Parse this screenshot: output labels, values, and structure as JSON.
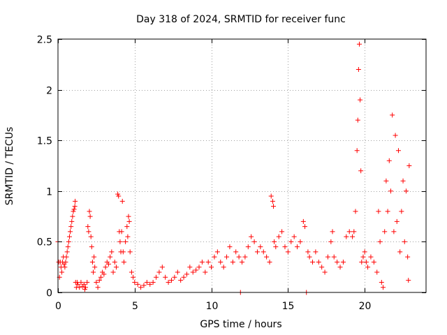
{
  "chart_data": {
    "type": "scatter",
    "title": "Day 318 of 2024, SRMTID for receiver func",
    "xlabel": "GPS time / hours",
    "ylabel": "SRMTID / TECUs",
    "xlim": [
      0,
      24
    ],
    "ylim": [
      0,
      2.5
    ],
    "x_ticks": [
      "0",
      "5",
      "10",
      "15",
      "20"
    ],
    "x_tick_values": [
      0,
      5,
      10,
      15,
      20
    ],
    "y_ticks": [
      "0",
      "0.5",
      "1",
      "1.5",
      "2",
      "2.5"
    ],
    "y_tick_values": [
      0,
      0.5,
      1,
      1.5,
      2,
      2.5
    ],
    "grid": true,
    "marker": "+",
    "color": "#ff0000",
    "series": [
      {
        "name": "SRMTID",
        "points": [
          [
            0.0,
            0.5
          ],
          [
            0.05,
            0.3
          ],
          [
            0.1,
            0.15
          ],
          [
            0.15,
            0.3
          ],
          [
            0.2,
            0.25
          ],
          [
            0.25,
            0.2
          ],
          [
            0.3,
            0.3
          ],
          [
            0.35,
            0.35
          ],
          [
            0.4,
            0.28
          ],
          [
            0.45,
            0.25
          ],
          [
            0.5,
            0.3
          ],
          [
            0.55,
            0.35
          ],
          [
            0.6,
            0.4
          ],
          [
            0.65,
            0.45
          ],
          [
            0.7,
            0.5
          ],
          [
            0.75,
            0.55
          ],
          [
            0.8,
            0.6
          ],
          [
            0.85,
            0.65
          ],
          [
            0.9,
            0.7
          ],
          [
            0.95,
            0.75
          ],
          [
            1.0,
            0.8
          ],
          [
            1.05,
            0.82
          ],
          [
            1.1,
            0.85
          ],
          [
            1.12,
            0.9
          ],
          [
            1.15,
            0.1
          ],
          [
            1.2,
            0.05
          ],
          [
            1.25,
            0.1
          ],
          [
            1.3,
            0.08
          ],
          [
            1.4,
            0.05
          ],
          [
            1.5,
            0.1
          ],
          [
            1.6,
            0.06
          ],
          [
            1.7,
            0.08
          ],
          [
            1.75,
            0.03
          ],
          [
            1.8,
            0.05
          ],
          [
            1.9,
            0.1
          ],
          [
            1.95,
            0.65
          ],
          [
            2.0,
            0.6
          ],
          [
            2.05,
            0.8
          ],
          [
            2.1,
            0.75
          ],
          [
            2.15,
            0.55
          ],
          [
            2.2,
            0.45
          ],
          [
            2.25,
            0.3
          ],
          [
            2.3,
            0.2
          ],
          [
            2.35,
            0.35
          ],
          [
            2.4,
            0.25
          ],
          [
            2.5,
            0.1
          ],
          [
            2.6,
            0.05
          ],
          [
            2.7,
            0.12
          ],
          [
            2.8,
            0.15
          ],
          [
            2.9,
            0.2
          ],
          [
            3.0,
            0.18
          ],
          [
            3.1,
            0.25
          ],
          [
            3.2,
            0.3
          ],
          [
            3.3,
            0.28
          ],
          [
            3.4,
            0.35
          ],
          [
            3.5,
            0.4
          ],
          [
            3.6,
            0.2
          ],
          [
            3.7,
            0.3
          ],
          [
            3.8,
            0.25
          ],
          [
            3.9,
            0.97
          ],
          [
            3.95,
            0.95
          ],
          [
            4.0,
            0.6
          ],
          [
            4.05,
            0.5
          ],
          [
            4.1,
            0.4
          ],
          [
            4.15,
            0.6
          ],
          [
            4.2,
            0.9
          ],
          [
            4.25,
            0.4
          ],
          [
            4.3,
            0.3
          ],
          [
            4.4,
            0.5
          ],
          [
            4.5,
            0.65
          ],
          [
            4.55,
            0.55
          ],
          [
            4.6,
            0.75
          ],
          [
            4.65,
            0.7
          ],
          [
            4.7,
            0.4
          ],
          [
            4.8,
            0.2
          ],
          [
            4.9,
            0.15
          ],
          [
            5.0,
            0.1
          ],
          [
            5.2,
            0.08
          ],
          [
            5.4,
            0.05
          ],
          [
            5.6,
            0.07
          ],
          [
            5.8,
            0.1
          ],
          [
            6.0,
            0.08
          ],
          [
            6.2,
            0.1
          ],
          [
            6.4,
            0.15
          ],
          [
            6.6,
            0.2
          ],
          [
            6.8,
            0.25
          ],
          [
            7.0,
            0.15
          ],
          [
            7.2,
            0.1
          ],
          [
            7.4,
            0.12
          ],
          [
            7.6,
            0.15
          ],
          [
            7.8,
            0.2
          ],
          [
            8.0,
            0.12
          ],
          [
            8.2,
            0.15
          ],
          [
            8.4,
            0.18
          ],
          [
            8.6,
            0.25
          ],
          [
            8.8,
            0.2
          ],
          [
            9.0,
            0.22
          ],
          [
            9.2,
            0.25
          ],
          [
            9.4,
            0.3
          ],
          [
            9.6,
            0.2
          ],
          [
            9.8,
            0.3
          ],
          [
            10.0,
            0.25
          ],
          [
            10.2,
            0.35
          ],
          [
            10.4,
            0.4
          ],
          [
            10.6,
            0.3
          ],
          [
            10.8,
            0.25
          ],
          [
            11.0,
            0.35
          ],
          [
            11.2,
            0.45
          ],
          [
            11.4,
            0.3
          ],
          [
            11.6,
            0.4
          ],
          [
            11.8,
            0.35
          ],
          [
            11.9,
            0.0
          ],
          [
            12.0,
            0.3
          ],
          [
            12.2,
            0.35
          ],
          [
            12.4,
            0.45
          ],
          [
            12.6,
            0.55
          ],
          [
            12.8,
            0.5
          ],
          [
            13.0,
            0.4
          ],
          [
            13.2,
            0.45
          ],
          [
            13.4,
            0.4
          ],
          [
            13.6,
            0.35
          ],
          [
            13.8,
            0.3
          ],
          [
            13.9,
            0.95
          ],
          [
            14.0,
            0.9
          ],
          [
            14.05,
            0.85
          ],
          [
            14.1,
            0.5
          ],
          [
            14.2,
            0.45
          ],
          [
            14.4,
            0.55
          ],
          [
            14.6,
            0.6
          ],
          [
            14.8,
            0.45
          ],
          [
            15.0,
            0.4
          ],
          [
            15.2,
            0.5
          ],
          [
            15.4,
            0.55
          ],
          [
            15.6,
            0.45
          ],
          [
            15.8,
            0.5
          ],
          [
            16.0,
            0.7
          ],
          [
            16.1,
            0.65
          ],
          [
            16.2,
            0.0
          ],
          [
            16.3,
            0.4
          ],
          [
            16.4,
            0.35
          ],
          [
            16.6,
            0.3
          ],
          [
            16.8,
            0.4
          ],
          [
            17.0,
            0.3
          ],
          [
            17.2,
            0.25
          ],
          [
            17.4,
            0.2
          ],
          [
            17.6,
            0.35
          ],
          [
            17.8,
            0.5
          ],
          [
            17.9,
            0.6
          ],
          [
            18.0,
            0.35
          ],
          [
            18.2,
            0.3
          ],
          [
            18.4,
            0.25
          ],
          [
            18.6,
            0.3
          ],
          [
            18.8,
            0.55
          ],
          [
            19.0,
            0.6
          ],
          [
            19.2,
            0.55
          ],
          [
            19.3,
            0.6
          ],
          [
            19.4,
            0.8
          ],
          [
            19.5,
            1.4
          ],
          [
            19.55,
            1.7
          ],
          [
            19.6,
            2.2
          ],
          [
            19.65,
            2.45
          ],
          [
            19.7,
            1.9
          ],
          [
            19.75,
            1.2
          ],
          [
            19.8,
            0.3
          ],
          [
            19.9,
            0.35
          ],
          [
            20.0,
            0.4
          ],
          [
            20.1,
            0.3
          ],
          [
            20.2,
            0.25
          ],
          [
            20.4,
            0.35
          ],
          [
            20.6,
            0.3
          ],
          [
            20.8,
            0.2
          ],
          [
            20.9,
            0.8
          ],
          [
            21.0,
            0.5
          ],
          [
            21.1,
            0.1
          ],
          [
            21.2,
            0.05
          ],
          [
            21.3,
            0.6
          ],
          [
            21.4,
            1.1
          ],
          [
            21.5,
            0.8
          ],
          [
            21.6,
            1.3
          ],
          [
            21.7,
            1.0
          ],
          [
            21.8,
            1.75
          ],
          [
            21.9,
            0.6
          ],
          [
            22.0,
            1.55
          ],
          [
            22.1,
            0.7
          ],
          [
            22.2,
            1.4
          ],
          [
            22.3,
            0.4
          ],
          [
            22.4,
            0.8
          ],
          [
            22.5,
            1.1
          ],
          [
            22.6,
            0.5
          ],
          [
            22.7,
            1.0
          ],
          [
            22.8,
            0.35
          ],
          [
            22.85,
            0.12
          ],
          [
            22.9,
            1.25
          ]
        ]
      }
    ]
  }
}
